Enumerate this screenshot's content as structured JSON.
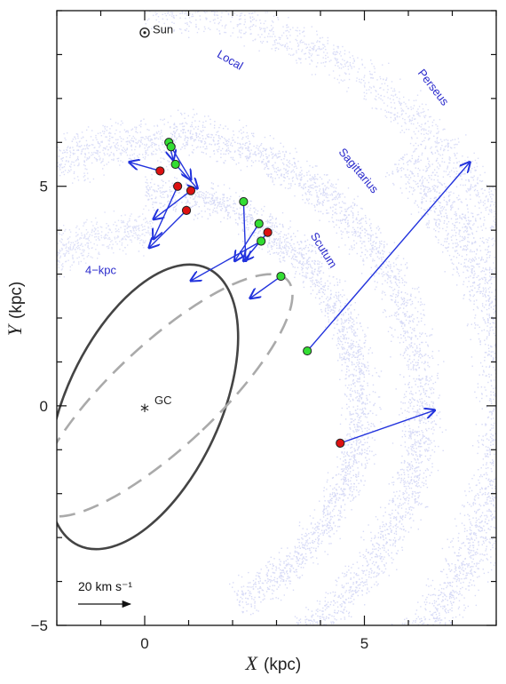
{
  "chart_data": {
    "type": "scatter",
    "xlabel": "X",
    "xlabel_unit": "(kpc)",
    "ylabel": "Y",
    "ylabel_unit": "(kpc)",
    "xlim": [
      -2,
      8
    ],
    "ylim": [
      -5,
      9
    ],
    "x_ticks": [
      0,
      5
    ],
    "y_ticks": [
      -5,
      0,
      5
    ],
    "x_tick_labels": [
      "0",
      "5"
    ],
    "y_tick_labels": [
      "−5",
      "0",
      "5"
    ],
    "grid": false,
    "colors": {
      "arms": "#b7bdf0",
      "vectors": "#2233dd",
      "green_marker": "#33dd33",
      "red_marker": "#dd1111",
      "bar_ellipse": "#444444",
      "bar_dashed": "#aaaaaa"
    },
    "arm_labels": [
      {
        "name": "Local",
        "x": 1.9,
        "y": 7.8,
        "angle": 30
      },
      {
        "name": "Perseus",
        "x": 6.5,
        "y": 7.2,
        "angle": 52
      },
      {
        "name": "Sagittarius",
        "x": 4.8,
        "y": 5.3,
        "angle": 50
      },
      {
        "name": "Scutum",
        "x": 4.0,
        "y": 3.5,
        "angle": 58
      },
      {
        "name": "4−kpc",
        "x": -1.0,
        "y": 3.0,
        "angle": 0
      }
    ],
    "annotations": {
      "sun_label": "Sun",
      "sun": {
        "x": 0.0,
        "y": 8.5
      },
      "gc_label": "GC",
      "gc": {
        "x": 0.0,
        "y": 0.0
      }
    },
    "scale_bar": {
      "label": "20 km s⁻¹"
    },
    "sources": [
      {
        "type": "green",
        "x": 0.55,
        "y": 6.0,
        "vx": 0.65,
        "vy": 5.6
      },
      {
        "type": "green",
        "x": 0.6,
        "y": 5.9,
        "vx": 1.05,
        "vy": 5.15
      },
      {
        "type": "red",
        "x": 0.35,
        "y": 5.35,
        "vx": -0.35,
        "vy": 5.55
      },
      {
        "type": "green",
        "x": 0.7,
        "y": 5.5,
        "vx": 1.2,
        "vy": 4.95
      },
      {
        "type": "red",
        "x": 0.75,
        "y": 5.0,
        "vx": 0.2,
        "vy": 3.8
      },
      {
        "type": "red",
        "x": 1.05,
        "y": 4.9,
        "vx": 0.2,
        "vy": 4.25
      },
      {
        "type": "red",
        "x": 0.95,
        "y": 4.45,
        "vx": 0.1,
        "vy": 3.6
      },
      {
        "type": "green",
        "x": 2.25,
        "y": 4.65,
        "vx": 2.3,
        "vy": 3.3
      },
      {
        "type": "green",
        "x": 2.6,
        "y": 4.15,
        "vx": 2.05,
        "vy": 3.3
      },
      {
        "type": "red",
        "x": 2.8,
        "y": 3.95,
        "vx": 2.25,
        "vy": 3.3
      },
      {
        "type": "green",
        "x": 2.65,
        "y": 3.75,
        "vx": 1.05,
        "vy": 2.85
      },
      {
        "type": "green",
        "x": 3.1,
        "y": 2.95,
        "vx": 2.4,
        "vy": 2.45
      },
      {
        "type": "green",
        "x": 3.7,
        "y": 1.25,
        "vx": 7.4,
        "vy": 5.55
      },
      {
        "type": "red",
        "x": 4.45,
        "y": -0.85,
        "vx": 6.6,
        "vy": -0.1
      }
    ]
  }
}
